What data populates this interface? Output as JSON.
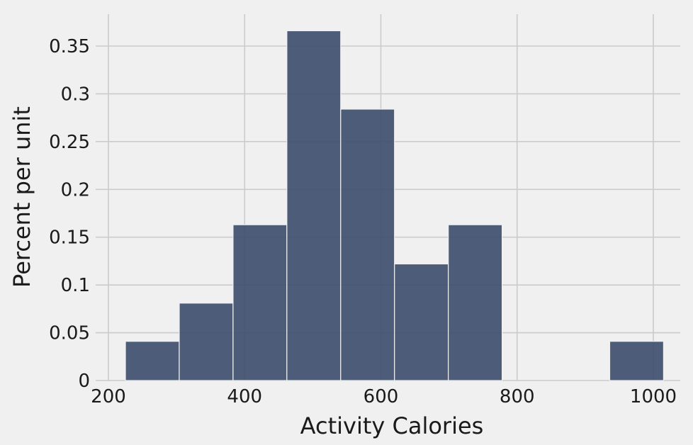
{
  "chart_data": {
    "type": "bar",
    "histogram": true,
    "title": "",
    "xlabel": "Activity Calories",
    "ylabel": "Percent per unit",
    "xlim": [
      200,
      1000
    ],
    "ylim": [
      0,
      0.35
    ],
    "x_ticks": [
      200,
      400,
      600,
      800,
      1000
    ],
    "y_ticks": [
      0,
      0.05,
      0.1,
      0.15,
      0.2,
      0.25,
      0.3,
      0.35
    ],
    "grid": true,
    "bins": [
      {
        "start": 225,
        "end": 304,
        "value": 0.041
      },
      {
        "start": 304,
        "end": 383,
        "value": 0.081
      },
      {
        "start": 383,
        "end": 462,
        "value": 0.163
      },
      {
        "start": 462,
        "end": 541,
        "value": 0.366
      },
      {
        "start": 541,
        "end": 620,
        "value": 0.284
      },
      {
        "start": 620,
        "end": 699,
        "value": 0.122
      },
      {
        "start": 699,
        "end": 778,
        "value": 0.163
      },
      {
        "start": 778,
        "end": 857,
        "value": 0
      },
      {
        "start": 857,
        "end": 936,
        "value": 0
      },
      {
        "start": 936,
        "end": 1015,
        "value": 0.041
      }
    ],
    "colors": {
      "bar": "#3f4f6e",
      "background": "#f0f0f0",
      "grid": "#cbcbcb"
    }
  }
}
